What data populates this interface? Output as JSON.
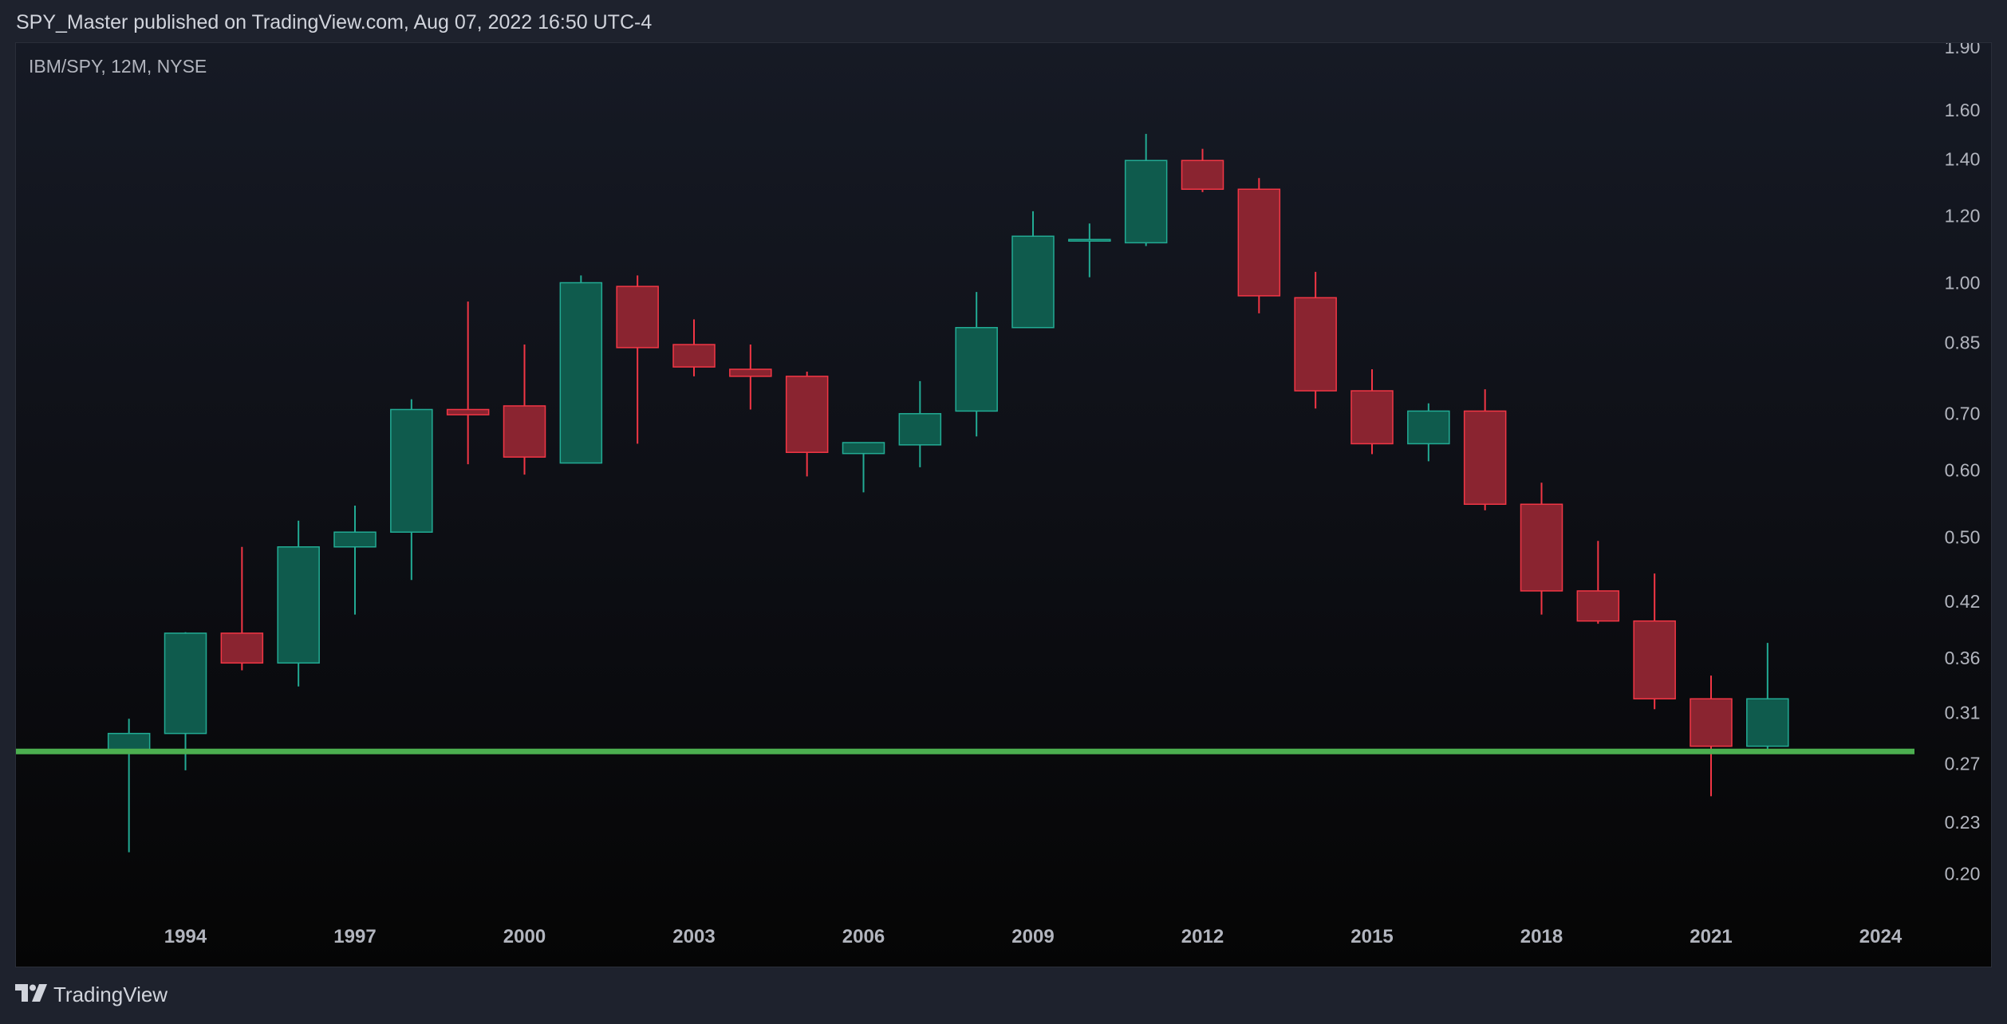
{
  "header": {
    "publish_text": "SPY_Master published on TradingView.com, Aug 07, 2022 16:50 UTC-4"
  },
  "chart": {
    "symbol_text": "IBM/SPY, 12M, NYSE"
  },
  "footer": {
    "brand_text": "TradingView",
    "logo_icon": "tradingview-logo-icon"
  },
  "colors": {
    "up": "#0f5b4d",
    "up_border": "#22ab94",
    "down": "#8a2430",
    "down_border": "#f23645",
    "support_line": "#4caf50",
    "axis_text": "#b2b5be"
  },
  "chart_data": {
    "type": "candlestick",
    "title": "",
    "xlabel": "",
    "ylabel": "",
    "y_scale": "log",
    "ylim": [
      0.18,
      1.9
    ],
    "xlim": [
      1991.0,
      2024.6
    ],
    "y_ticks": [
      "1.90",
      "1.60",
      "1.40",
      "1.20",
      "1.00",
      "0.85",
      "0.70",
      "0.60",
      "0.50",
      "0.42",
      "0.36",
      "0.31",
      "0.27",
      "0.23",
      "0.20"
    ],
    "x_ticks": [
      "1994",
      "1997",
      "2000",
      "2003",
      "2006",
      "2009",
      "2012",
      "2015",
      "2018",
      "2021",
      "2024"
    ],
    "horizontal_line": {
      "value": 0.279
    },
    "candles": [
      {
        "year": 1993,
        "open": 0.279,
        "high": 0.305,
        "low": 0.212,
        "close": 0.293
      },
      {
        "year": 1994,
        "open": 0.293,
        "high": 0.386,
        "low": 0.265,
        "close": 0.385
      },
      {
        "year": 1995,
        "open": 0.385,
        "high": 0.487,
        "low": 0.348,
        "close": 0.355
      },
      {
        "year": 1996,
        "open": 0.355,
        "high": 0.523,
        "low": 0.333,
        "close": 0.487
      },
      {
        "year": 1997,
        "open": 0.487,
        "high": 0.545,
        "low": 0.405,
        "close": 0.507
      },
      {
        "year": 1998,
        "open": 0.507,
        "high": 0.728,
        "low": 0.445,
        "close": 0.708
      },
      {
        "year": 1999,
        "open": 0.708,
        "high": 0.95,
        "low": 0.61,
        "close": 0.698
      },
      {
        "year": 2000,
        "open": 0.715,
        "high": 0.845,
        "low": 0.593,
        "close": 0.622
      },
      {
        "year": 2001,
        "open": 0.612,
        "high": 1.02,
        "low": 0.612,
        "close": 1.0
      },
      {
        "year": 2002,
        "open": 0.99,
        "high": 1.02,
        "low": 0.645,
        "close": 0.838
      },
      {
        "year": 2003,
        "open": 0.845,
        "high": 0.905,
        "low": 0.775,
        "close": 0.795
      },
      {
        "year": 2004,
        "open": 0.79,
        "high": 0.845,
        "low": 0.708,
        "close": 0.775
      },
      {
        "year": 2005,
        "open": 0.775,
        "high": 0.785,
        "low": 0.59,
        "close": 0.63
      },
      {
        "year": 2006,
        "open": 0.628,
        "high": 0.645,
        "low": 0.565,
        "close": 0.647
      },
      {
        "year": 2007,
        "open": 0.643,
        "high": 0.765,
        "low": 0.605,
        "close": 0.7
      },
      {
        "year": 2008,
        "open": 0.705,
        "high": 0.975,
        "low": 0.658,
        "close": 0.885
      },
      {
        "year": 2009,
        "open": 0.885,
        "high": 1.215,
        "low": 0.885,
        "close": 1.135
      },
      {
        "year": 2010,
        "open": 1.125,
        "high": 1.175,
        "low": 1.015,
        "close": 1.125
      },
      {
        "year": 2011,
        "open": 1.115,
        "high": 1.5,
        "low": 1.105,
        "close": 1.395
      },
      {
        "year": 2012,
        "open": 1.395,
        "high": 1.44,
        "low": 1.28,
        "close": 1.29
      },
      {
        "year": 2013,
        "open": 1.29,
        "high": 1.33,
        "low": 0.92,
        "close": 0.965
      },
      {
        "year": 2014,
        "open": 0.96,
        "high": 1.03,
        "low": 0.71,
        "close": 0.745
      },
      {
        "year": 2015,
        "open": 0.745,
        "high": 0.79,
        "low": 0.627,
        "close": 0.645
      },
      {
        "year": 2016,
        "open": 0.645,
        "high": 0.72,
        "low": 0.615,
        "close": 0.705
      },
      {
        "year": 2017,
        "open": 0.705,
        "high": 0.748,
        "low": 0.538,
        "close": 0.547
      },
      {
        "year": 2018,
        "open": 0.547,
        "high": 0.58,
        "low": 0.405,
        "close": 0.432
      },
      {
        "year": 2019,
        "open": 0.432,
        "high": 0.495,
        "low": 0.395,
        "close": 0.398
      },
      {
        "year": 2020,
        "open": 0.398,
        "high": 0.453,
        "low": 0.313,
        "close": 0.322
      },
      {
        "year": 2021,
        "open": 0.322,
        "high": 0.343,
        "low": 0.247,
        "close": 0.283
      },
      {
        "year": 2022,
        "open": 0.283,
        "high": 0.375,
        "low": 0.281,
        "close": 0.322
      }
    ]
  }
}
